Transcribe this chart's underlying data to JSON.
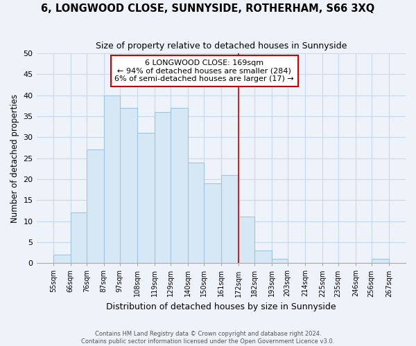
{
  "title": "6, LONGWOOD CLOSE, SUNNYSIDE, ROTHERHAM, S66 3XQ",
  "subtitle": "Size of property relative to detached houses in Sunnyside",
  "xlabel": "Distribution of detached houses by size in Sunnyside",
  "ylabel": "Number of detached properties",
  "footer_line1": "Contains HM Land Registry data © Crown copyright and database right 2024.",
  "footer_line2": "Contains public sector information licensed under the Open Government Licence v3.0.",
  "bin_labels": [
    "55sqm",
    "66sqm",
    "76sqm",
    "87sqm",
    "97sqm",
    "108sqm",
    "119sqm",
    "129sqm",
    "140sqm",
    "150sqm",
    "161sqm",
    "172sqm",
    "182sqm",
    "193sqm",
    "203sqm",
    "214sqm",
    "225sqm",
    "235sqm",
    "246sqm",
    "256sqm",
    "267sqm"
  ],
  "bar_values": [
    2,
    12,
    27,
    40,
    37,
    31,
    36,
    37,
    24,
    19,
    21,
    11,
    3,
    1,
    0,
    0,
    0,
    0,
    0,
    1
  ],
  "bar_color": "#d6e8f5",
  "bar_edge_color": "#a0c4de",
  "vline_x": 172,
  "vline_color": "#cc0000",
  "annotation_title": "6 LONGWOOD CLOSE: 169sqm",
  "annotation_line1": "← 94% of detached houses are smaller (284)",
  "annotation_line2": "6% of semi-detached houses are larger (17) →",
  "annotation_box_edge": "#cc0000",
  "annotation_bg": "#ffffff",
  "ylim": [
    0,
    50
  ],
  "yticks": [
    0,
    5,
    10,
    15,
    20,
    25,
    30,
    35,
    40,
    45,
    50
  ],
  "bin_edges": [
    55,
    66,
    76,
    87,
    97,
    108,
    119,
    129,
    140,
    150,
    161,
    172,
    182,
    193,
    203,
    214,
    225,
    235,
    246,
    256,
    267
  ],
  "background_color": "#eef2f9",
  "grid_color": "#c8d8ee",
  "spine_color": "#aaaaaa"
}
